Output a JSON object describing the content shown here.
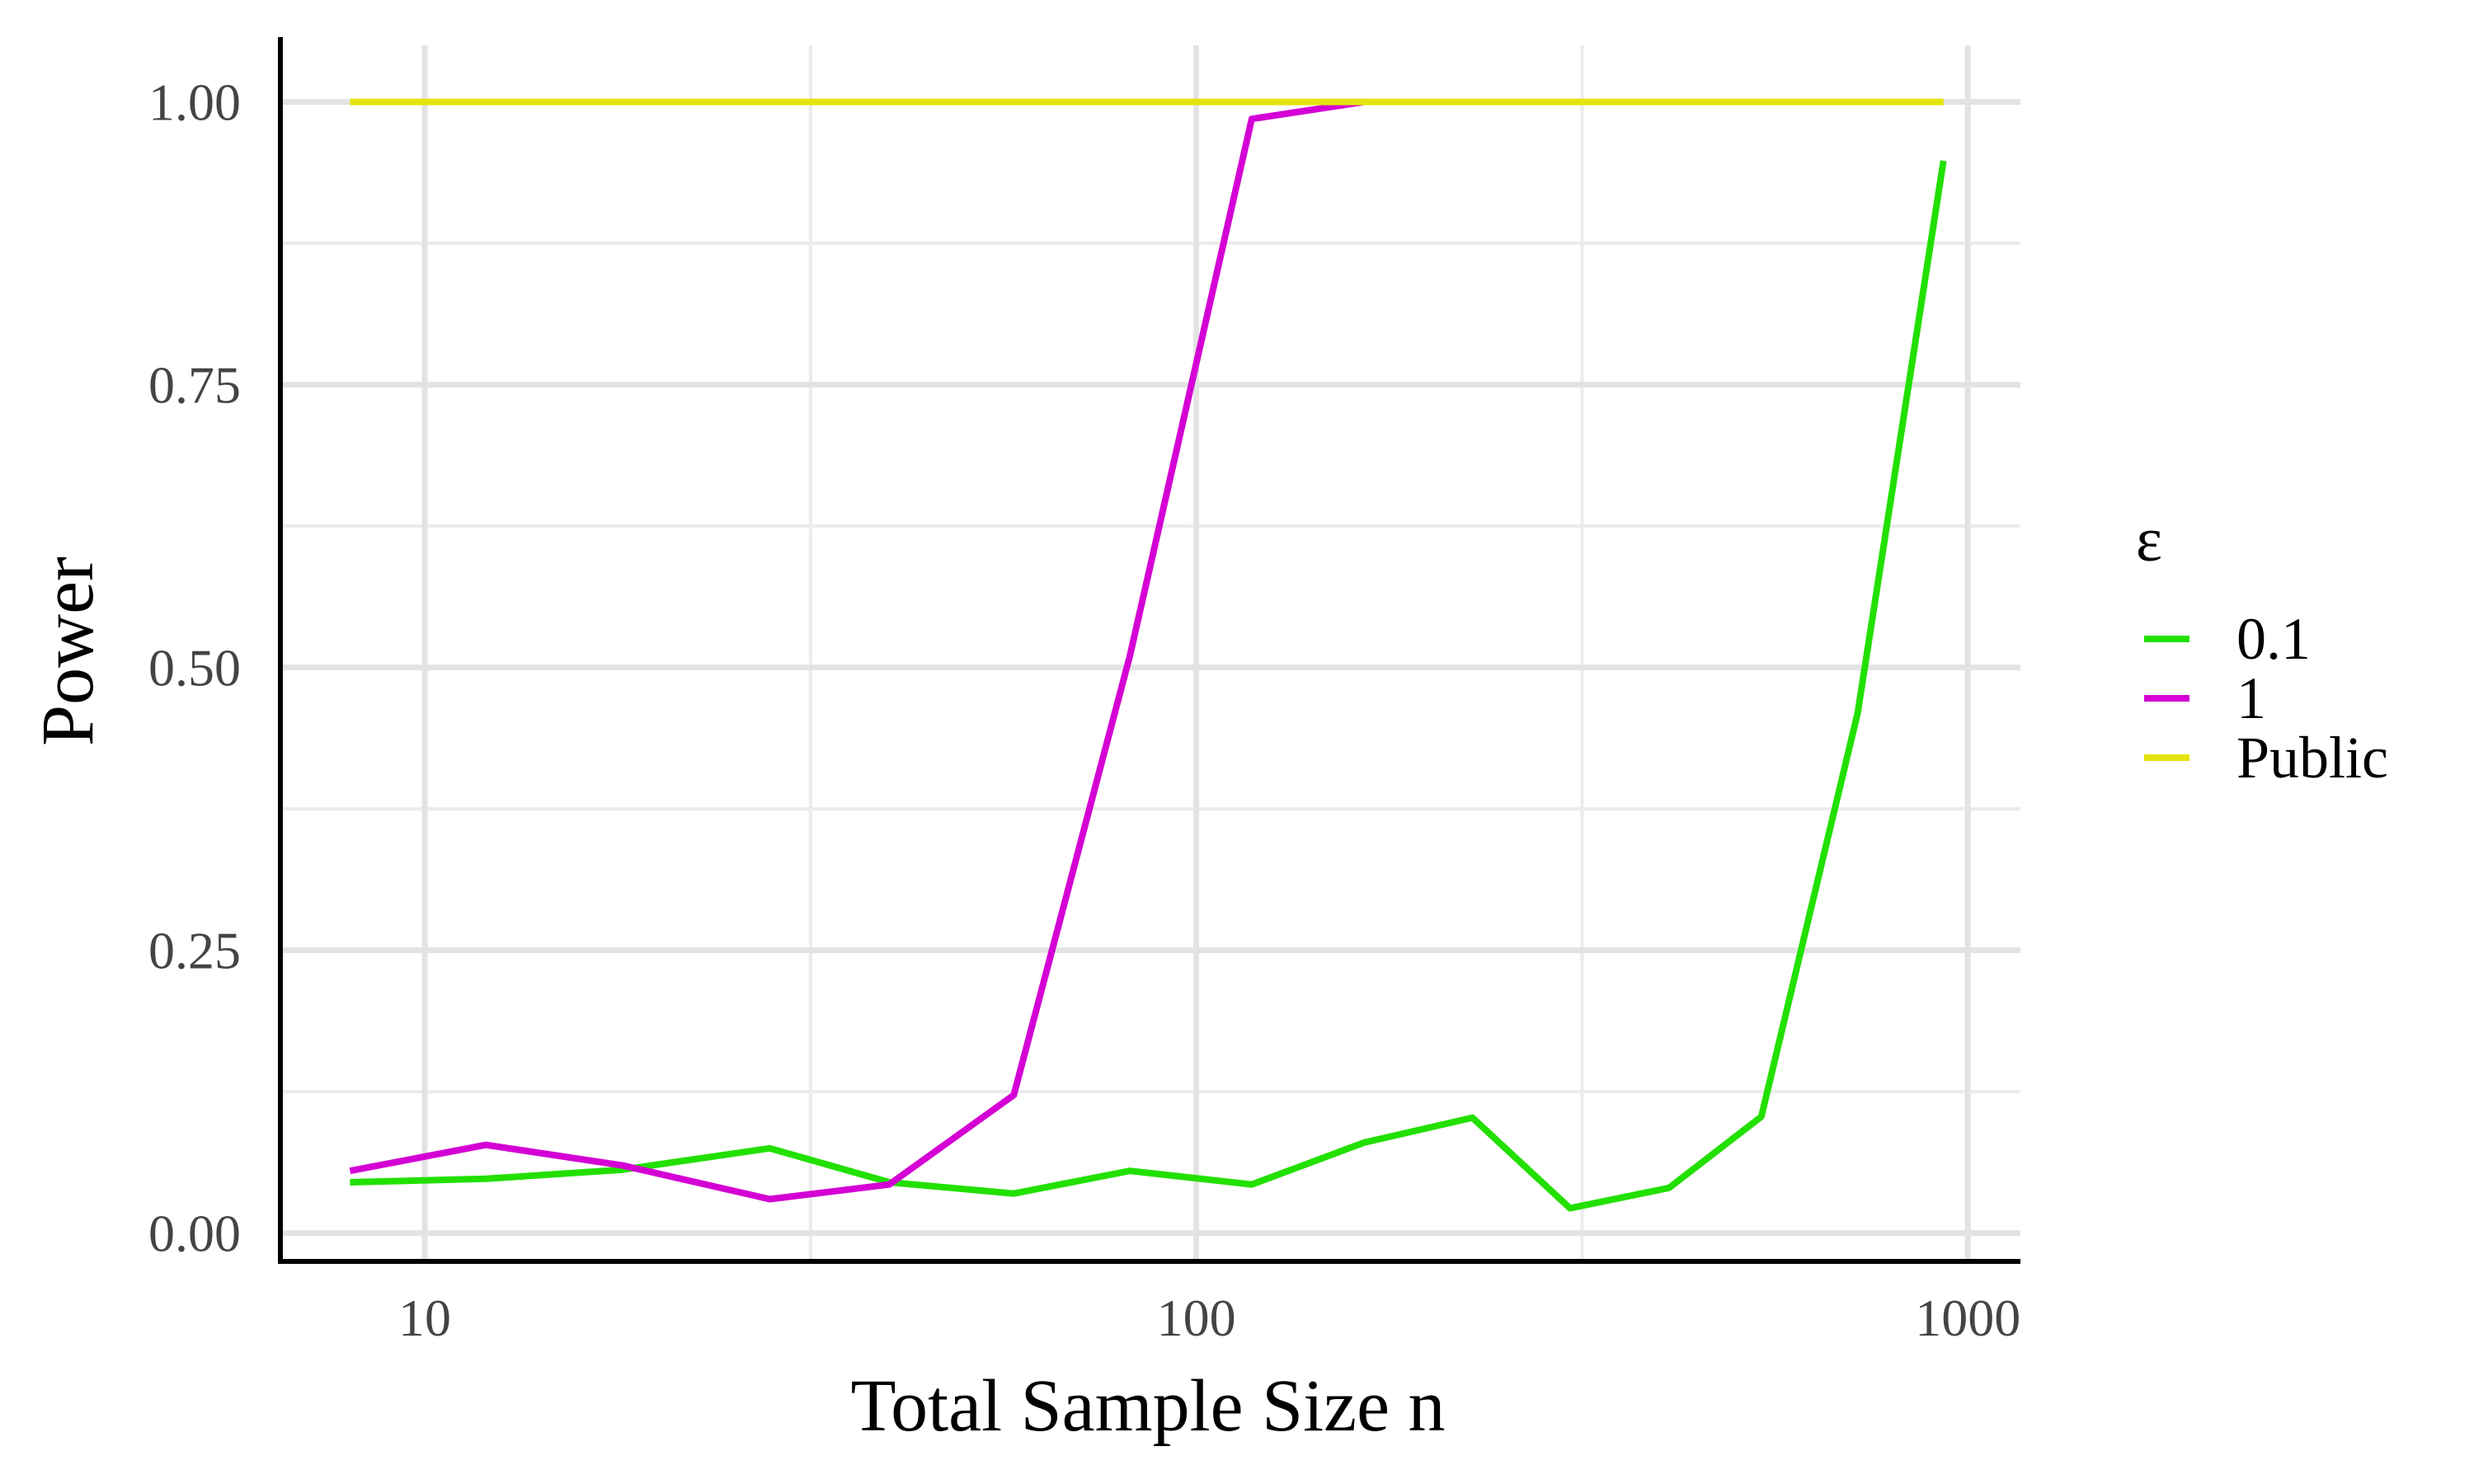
{
  "chart_data": {
    "type": "line",
    "xlabel": "Total Sample Size n",
    "ylabel": "Power",
    "x_scale": "log10",
    "xlim": [
      6.5,
      1170
    ],
    "ylim": [
      -0.025,
      1.05
    ],
    "x_ticks": [
      10,
      100,
      1000
    ],
    "x_tick_labels": [
      "10",
      "100",
      "1000"
    ],
    "y_ticks": [
      0,
      0.25,
      0.5,
      0.75,
      1
    ],
    "y_tick_labels": [
      "0.00",
      "0.25",
      "0.50",
      "0.75",
      "1.00"
    ],
    "grid": true,
    "legend": {
      "title": "ε",
      "position": "right"
    },
    "series": [
      {
        "name": "0.1",
        "color": "#22e000",
        "x": [
          8,
          12,
          18,
          28,
          40,
          58,
          82,
          118,
          165,
          228,
          305,
          410,
          540,
          720,
          930
        ],
        "y": [
          0.045,
          0.048,
          0.056,
          0.075,
          0.045,
          0.035,
          0.055,
          0.043,
          0.08,
          0.102,
          0.022,
          0.04,
          0.103,
          0.46,
          0.948
        ]
      },
      {
        "name": "1",
        "color": "#d400d4",
        "x": [
          8,
          12,
          18,
          28,
          40,
          58,
          82,
          118,
          165
        ],
        "y": [
          0.055,
          0.078,
          0.06,
          0.03,
          0.043,
          0.122,
          0.51,
          0.985,
          1.0
        ]
      },
      {
        "name": "Public",
        "color": "#e4e40a",
        "x": [
          8,
          12,
          18,
          28,
          40,
          58,
          82,
          118,
          165,
          228,
          305,
          410,
          540,
          720,
          930
        ],
        "y": [
          1,
          1,
          1,
          1,
          1,
          1,
          1,
          1,
          1,
          1,
          1,
          1,
          1,
          1,
          1
        ]
      }
    ]
  }
}
